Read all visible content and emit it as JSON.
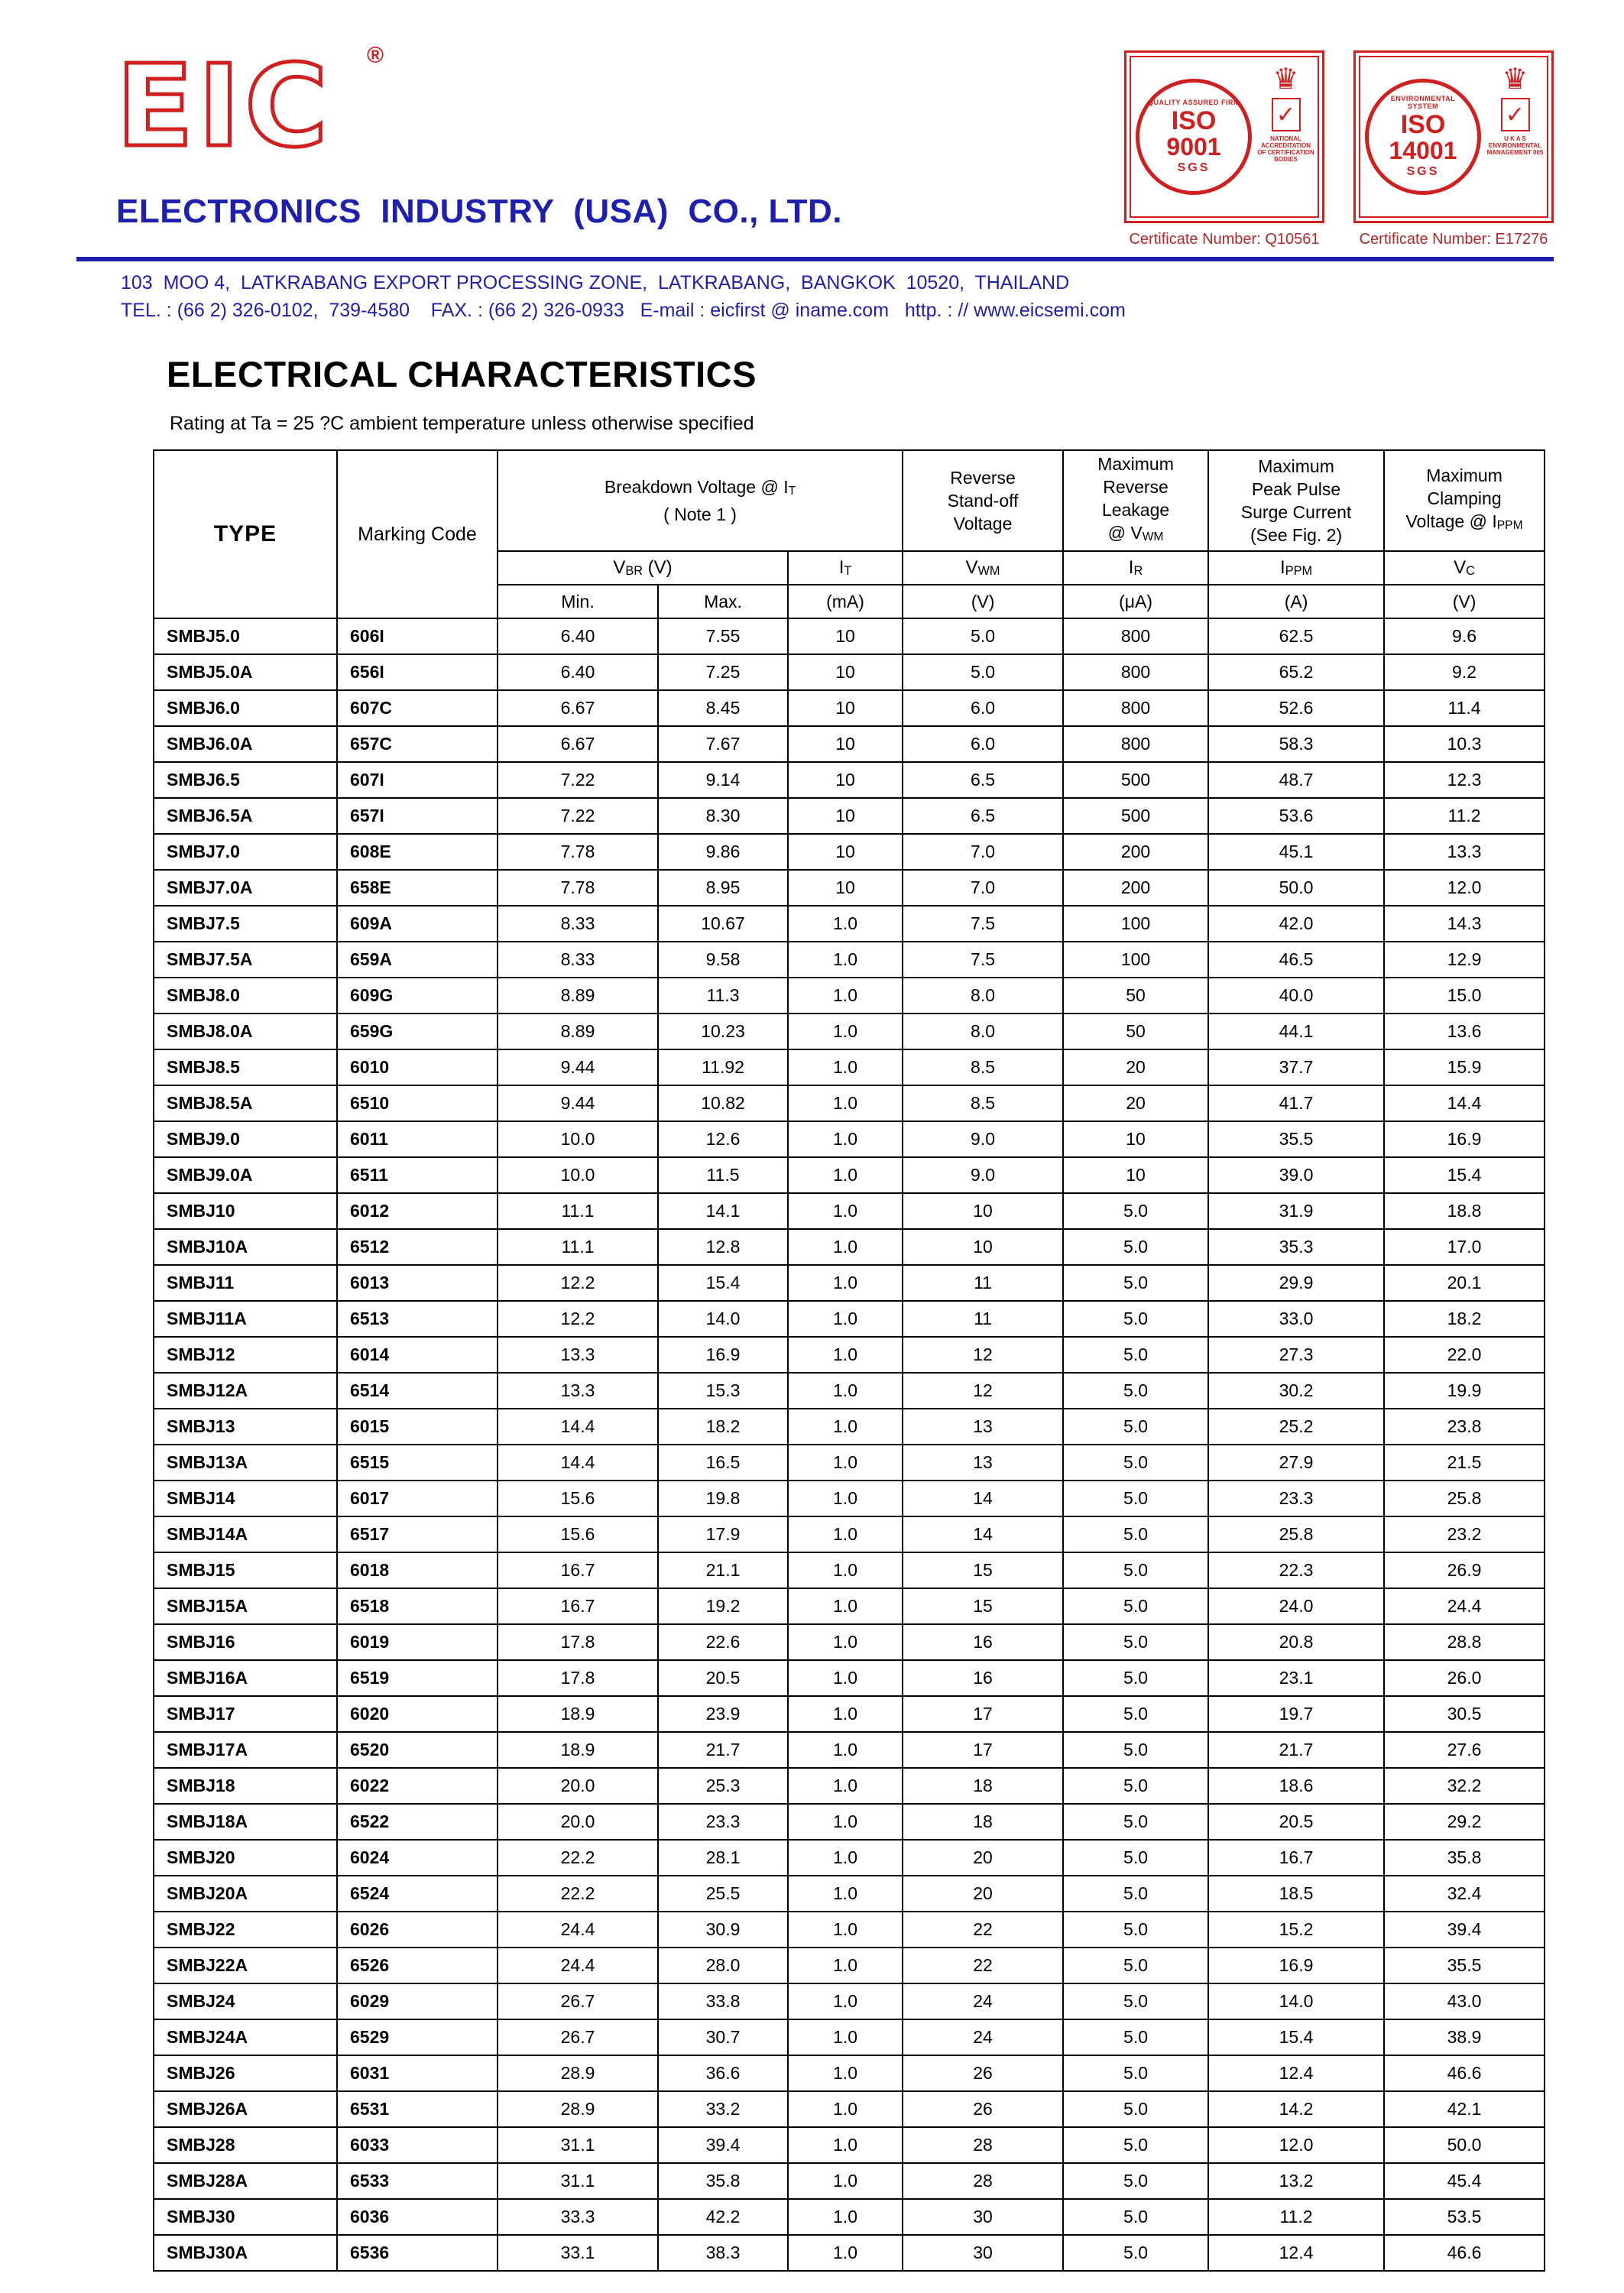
{
  "page": {
    "logo": {
      "text": "EIC",
      "reg": "®"
    },
    "company": "ELECTRONICS  INDUSTRY  (USA)  CO., LTD.",
    "address_line1": "103  MOO 4,  LATKRABANG EXPORT PROCESSING ZONE,  LATKRABANG,  BANGKOK  10520,  THAILAND",
    "address_line2": "TEL. : (66 2) 326-0102,  739-4580    FAX. : (66 2) 326-0933   E-mail : eicfirst @ iname.com   http. : // www.eicsemi.com",
    "certs": [
      {
        "banner": "QUALITY ASSURED FIRM",
        "iso": "ISO",
        "num": "9001",
        "org": "SGS",
        "crown": "♛",
        "check": "✓",
        "side": "NATIONAL ACCREDITATION OF CERTIFICATION BODIES",
        "cert": "Certificate Number: Q10561"
      },
      {
        "banner": "ENVIRONMENTAL SYSTEM",
        "iso": "ISO",
        "num": "14001",
        "org": "SGS",
        "crown": "♛",
        "check": "✓",
        "side": "U K A S ENVIRONMENTAL MANAGEMENT 005",
        "cert": "Certificate Number: E17276"
      }
    ]
  },
  "section": {
    "title": "ELECTRICAL CHARACTERISTICS",
    "subtitle": "Rating at Ta = 25 ?C ambient temperature unless otherwise specified"
  },
  "table": {
    "headers": {
      "type": "TYPE",
      "marking": "Marking Code",
      "breakdown": {
        "line1_pre": "Breakdown Voltage @  ",
        "line1_sym": "I",
        "line1_sub": "T",
        "line2": "( Note 1 )"
      },
      "standoff": {
        "l1": "Reverse",
        "l2": "Stand-off",
        "l3": "Voltage"
      },
      "leakage": {
        "l1": "Maximum",
        "l2": "Reverse",
        "l3": "Leakage",
        "l4_pre": "@ V",
        "l4_sub": "WM"
      },
      "surge": {
        "l1": "Maximum",
        "l2": "Peak Pulse",
        "l3": "Surge Current",
        "l4": "(See Fig. 2)"
      },
      "clamping": {
        "l1": "Maximum",
        "l2": "Clamping",
        "l3_pre": "Voltage @ I",
        "l3_sub": "PPM"
      },
      "sym": {
        "vbr_sym": "V",
        "vbr_sub": "BR",
        "vbr_unit": " (V)",
        "it_sym": "I",
        "it_sub": "T",
        "vwm_sym": "V",
        "vwm_sub": "WM",
        "ir_sym": "I",
        "ir_sub": "R",
        "ippm_sym": "I",
        "ippm_sub": "PPM",
        "vc_sym": "V",
        "vc_sub": "C"
      },
      "units": {
        "min": "Min.",
        "max": "Max.",
        "it": "(mA)",
        "vwm": "(V)",
        "ir": "(μA)",
        "ippm": "(A)",
        "vc": "(V)"
      }
    },
    "rows": [
      [
        "SMBJ5.0",
        "606I",
        "6.40",
        "7.55",
        "10",
        "5.0",
        "800",
        "62.5",
        "9.6"
      ],
      [
        "SMBJ5.0A",
        "656I",
        "6.40",
        "7.25",
        "10",
        "5.0",
        "800",
        "65.2",
        "9.2"
      ],
      [
        "SMBJ6.0",
        "607C",
        "6.67",
        "8.45",
        "10",
        "6.0",
        "800",
        "52.6",
        "11.4"
      ],
      [
        "SMBJ6.0A",
        "657C",
        "6.67",
        "7.67",
        "10",
        "6.0",
        "800",
        "58.3",
        "10.3"
      ],
      [
        "SMBJ6.5",
        "607I",
        "7.22",
        "9.14",
        "10",
        "6.5",
        "500",
        "48.7",
        "12.3"
      ],
      [
        "SMBJ6.5A",
        "657I",
        "7.22",
        "8.30",
        "10",
        "6.5",
        "500",
        "53.6",
        "11.2"
      ],
      [
        "SMBJ7.0",
        "608E",
        "7.78",
        "9.86",
        "10",
        "7.0",
        "200",
        "45.1",
        "13.3"
      ],
      [
        "SMBJ7.0A",
        "658E",
        "7.78",
        "8.95",
        "10",
        "7.0",
        "200",
        "50.0",
        "12.0"
      ],
      [
        "SMBJ7.5",
        "609A",
        "8.33",
        "10.67",
        "1.0",
        "7.5",
        "100",
        "42.0",
        "14.3"
      ],
      [
        "SMBJ7.5A",
        "659A",
        "8.33",
        "9.58",
        "1.0",
        "7.5",
        "100",
        "46.5",
        "12.9"
      ],
      [
        "SMBJ8.0",
        "609G",
        "8.89",
        "11.3",
        "1.0",
        "8.0",
        "50",
        "40.0",
        "15.0"
      ],
      [
        "SMBJ8.0A",
        "659G",
        "8.89",
        "10.23",
        "1.0",
        "8.0",
        "50",
        "44.1",
        "13.6"
      ],
      [
        "SMBJ8.5",
        "6010",
        "9.44",
        "11.92",
        "1.0",
        "8.5",
        "20",
        "37.7",
        "15.9"
      ],
      [
        "SMBJ8.5A",
        "6510",
        "9.44",
        "10.82",
        "1.0",
        "8.5",
        "20",
        "41.7",
        "14.4"
      ],
      [
        "SMBJ9.0",
        "6011",
        "10.0",
        "12.6",
        "1.0",
        "9.0",
        "10",
        "35.5",
        "16.9"
      ],
      [
        "SMBJ9.0A",
        "6511",
        "10.0",
        "11.5",
        "1.0",
        "9.0",
        "10",
        "39.0",
        "15.4"
      ],
      [
        "SMBJ10",
        "6012",
        "11.1",
        "14.1",
        "1.0",
        "10",
        "5.0",
        "31.9",
        "18.8"
      ],
      [
        "SMBJ10A",
        "6512",
        "11.1",
        "12.8",
        "1.0",
        "10",
        "5.0",
        "35.3",
        "17.0"
      ],
      [
        "SMBJ11",
        "6013",
        "12.2",
        "15.4",
        "1.0",
        "11",
        "5.0",
        "29.9",
        "20.1"
      ],
      [
        "SMBJ11A",
        "6513",
        "12.2",
        "14.0",
        "1.0",
        "11",
        "5.0",
        "33.0",
        "18.2"
      ],
      [
        "SMBJ12",
        "6014",
        "13.3",
        "16.9",
        "1.0",
        "12",
        "5.0",
        "27.3",
        "22.0"
      ],
      [
        "SMBJ12A",
        "6514",
        "13.3",
        "15.3",
        "1.0",
        "12",
        "5.0",
        "30.2",
        "19.9"
      ],
      [
        "SMBJ13",
        "6015",
        "14.4",
        "18.2",
        "1.0",
        "13",
        "5.0",
        "25.2",
        "23.8"
      ],
      [
        "SMBJ13A",
        "6515",
        "14.4",
        "16.5",
        "1.0",
        "13",
        "5.0",
        "27.9",
        "21.5"
      ],
      [
        "SMBJ14",
        "6017",
        "15.6",
        "19.8",
        "1.0",
        "14",
        "5.0",
        "23.3",
        "25.8"
      ],
      [
        "SMBJ14A",
        "6517",
        "15.6",
        "17.9",
        "1.0",
        "14",
        "5.0",
        "25.8",
        "23.2"
      ],
      [
        "SMBJ15",
        "6018",
        "16.7",
        "21.1",
        "1.0",
        "15",
        "5.0",
        "22.3",
        "26.9"
      ],
      [
        "SMBJ15A",
        "6518",
        "16.7",
        "19.2",
        "1.0",
        "15",
        "5.0",
        "24.0",
        "24.4"
      ],
      [
        "SMBJ16",
        "6019",
        "17.8",
        "22.6",
        "1.0",
        "16",
        "5.0",
        "20.8",
        "28.8"
      ],
      [
        "SMBJ16A",
        "6519",
        "17.8",
        "20.5",
        "1.0",
        "16",
        "5.0",
        "23.1",
        "26.0"
      ],
      [
        "SMBJ17",
        "6020",
        "18.9",
        "23.9",
        "1.0",
        "17",
        "5.0",
        "19.7",
        "30.5"
      ],
      [
        "SMBJ17A",
        "6520",
        "18.9",
        "21.7",
        "1.0",
        "17",
        "5.0",
        "21.7",
        "27.6"
      ],
      [
        "SMBJ18",
        "6022",
        "20.0",
        "25.3",
        "1.0",
        "18",
        "5.0",
        "18.6",
        "32.2"
      ],
      [
        "SMBJ18A",
        "6522",
        "20.0",
        "23.3",
        "1.0",
        "18",
        "5.0",
        "20.5",
        "29.2"
      ],
      [
        "SMBJ20",
        "6024",
        "22.2",
        "28.1",
        "1.0",
        "20",
        "5.0",
        "16.7",
        "35.8"
      ],
      [
        "SMBJ20A",
        "6524",
        "22.2",
        "25.5",
        "1.0",
        "20",
        "5.0",
        "18.5",
        "32.4"
      ],
      [
        "SMBJ22",
        "6026",
        "24.4",
        "30.9",
        "1.0",
        "22",
        "5.0",
        "15.2",
        "39.4"
      ],
      [
        "SMBJ22A",
        "6526",
        "24.4",
        "28.0",
        "1.0",
        "22",
        "5.0",
        "16.9",
        "35.5"
      ],
      [
        "SMBJ24",
        "6029",
        "26.7",
        "33.8",
        "1.0",
        "24",
        "5.0",
        "14.0",
        "43.0"
      ],
      [
        "SMBJ24A",
        "6529",
        "26.7",
        "30.7",
        "1.0",
        "24",
        "5.0",
        "15.4",
        "38.9"
      ],
      [
        "SMBJ26",
        "6031",
        "28.9",
        "36.6",
        "1.0",
        "26",
        "5.0",
        "12.4",
        "46.6"
      ],
      [
        "SMBJ26A",
        "6531",
        "28.9",
        "33.2",
        "1.0",
        "26",
        "5.0",
        "14.2",
        "42.1"
      ],
      [
        "SMBJ28",
        "6033",
        "31.1",
        "39.4",
        "1.0",
        "28",
        "5.0",
        "12.0",
        "50.0"
      ],
      [
        "SMBJ28A",
        "6533",
        "31.1",
        "35.8",
        "1.0",
        "28",
        "5.0",
        "13.2",
        "45.4"
      ],
      [
        "SMBJ30",
        "6036",
        "33.3",
        "42.2",
        "1.0",
        "30",
        "5.0",
        "11.2",
        "53.5"
      ],
      [
        "SMBJ30A",
        "6536",
        "33.1",
        "38.3",
        "1.0",
        "30",
        "5.0",
        "12.4",
        "46.6"
      ]
    ]
  }
}
